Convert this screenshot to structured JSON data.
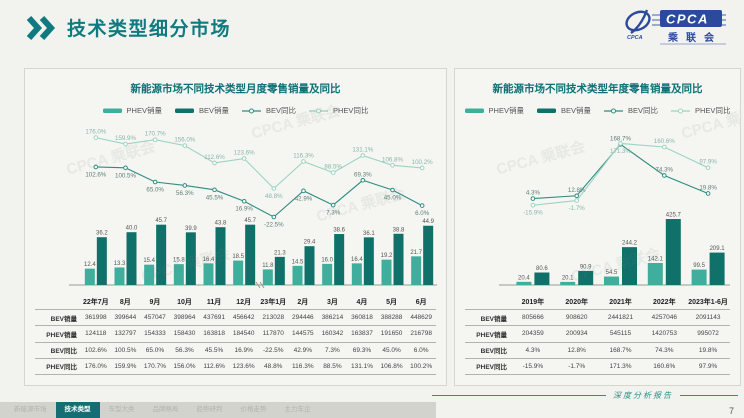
{
  "header": {
    "title": "技术类型细分市场",
    "logo": {
      "brand": "CPCA",
      "brand_cn": "乘联会"
    }
  },
  "watermark": "CPCA 乘联会",
  "colors": {
    "accent": "#0f7a80",
    "phev_bar": "#3fae9c",
    "bev_bar": "#10716a",
    "bev_line": "#2f8c82",
    "phev_line": "#9ad4c3",
    "active_tab_bg": "#156e74",
    "logo_blue": "#2b4a9e"
  },
  "chart_data": [
    {
      "type": "bar+line",
      "title": "新能源市场不同技术类型月度零售销量及同比",
      "bar_unit": "万",
      "categories": [
        "22年7月",
        "8月",
        "9月",
        "10月",
        "11月",
        "12月",
        "23年1月",
        "2月",
        "3月",
        "4月",
        "5月",
        "6月"
      ],
      "bar_series": [
        {
          "name": "PHEV销量",
          "color": "#3fae9c",
          "values": [
            12.4,
            13.3,
            15.4,
            15.8,
            16.4,
            18.5,
            11.8,
            14.5,
            16.0,
            16.4,
            19.2,
            21.7
          ]
        },
        {
          "name": "BEV销量",
          "color": "#10716a",
          "values": [
            36.2,
            40.0,
            45.7,
            39.9,
            43.8,
            45.7,
            21.3,
            29.4,
            38.6,
            36.1,
            38.8,
            44.9
          ]
        }
      ],
      "line_series": [
        {
          "name": "BEV同比",
          "color": "#2f8c82",
          "label_color": "#5d7f79",
          "values": [
            102.6,
            100.5,
            65.0,
            56.3,
            45.5,
            16.9,
            -22.5,
            42.9,
            7.3,
            69.3,
            45.0,
            6.0
          ]
        },
        {
          "name": "PHEV同比",
          "color": "#9ad4c3",
          "label_color": "#87b7a9",
          "values": [
            176.0,
            159.9,
            170.7,
            156.0,
            112.6,
            123.6,
            48.8,
            116.3,
            88.5,
            131.1,
            106.8,
            100.2
          ]
        }
      ],
      "table": {
        "row_headers": [
          "BEV销量",
          "PHEV销量",
          "BEV同比",
          "PHEV同比"
        ],
        "rows": [
          [
            "361998",
            "399644",
            "457047",
            "398964",
            "437691",
            "456642",
            "213028",
            "294446",
            "386214",
            "360818",
            "388288",
            "448629"
          ],
          [
            "124118",
            "132797",
            "154333",
            "158430",
            "163818",
            "184540",
            "117870",
            "144575",
            "160342",
            "163837",
            "191650",
            "216798"
          ],
          [
            "102.6%",
            "100.5%",
            "65.0%",
            "56.3%",
            "45.5%",
            "16.9%",
            "-22.5%",
            "42.9%",
            "7.3%",
            "69.3%",
            "45.0%",
            "6.0%"
          ],
          [
            "176.0%",
            "159.9%",
            "170.7%",
            "156.0%",
            "112.6%",
            "123.6%",
            "48.8%",
            "116.3%",
            "88.5%",
            "131.1%",
            "106.8%",
            "100.2%"
          ]
        ]
      }
    },
    {
      "type": "bar+line",
      "title": "新能源市场不同技术类型年度零售销量及同比",
      "bar_unit": "万",
      "categories": [
        "2019年",
        "2020年",
        "2021年",
        "2022年",
        "2023年1-6月"
      ],
      "bar_series": [
        {
          "name": "PHEV销量",
          "color": "#3fae9c",
          "values": [
            20.4,
            20.1,
            54.5,
            142.1,
            99.5
          ]
        },
        {
          "name": "BEV销量",
          "color": "#10716a",
          "values": [
            80.6,
            90.9,
            244.2,
            425.7,
            209.1
          ]
        }
      ],
      "line_series": [
        {
          "name": "BEV同比",
          "color": "#2f8c82",
          "label_color": "#5d7f79",
          "values": [
            4.3,
            12.8,
            168.7,
            74.3,
            19.8
          ]
        },
        {
          "name": "PHEV同比",
          "color": "#9ad4c3",
          "label_color": "#87b7a9",
          "values": [
            -15.9,
            -1.7,
            171.3,
            160.6,
            97.9
          ]
        }
      ],
      "table": {
        "row_headers": [
          "BEV销量",
          "PHEV销量",
          "BEV同比",
          "PHEV同比"
        ],
        "rows": [
          [
            "805666",
            "908620",
            "2441821",
            "4257046",
            "2091143"
          ],
          [
            "204359",
            "200934",
            "545115",
            "1420753",
            "995072"
          ],
          [
            "4.3%",
            "12.8%",
            "168.7%",
            "74.3%",
            "19.8%"
          ],
          [
            "-15.9%",
            "-1.7%",
            "171.3%",
            "160.6%",
            "97.9%"
          ]
        ]
      }
    }
  ],
  "nav": {
    "tabs": [
      {
        "label": "新能源市场",
        "active": false
      },
      {
        "label": "技术类型",
        "active": true
      },
      {
        "label": "车型大类",
        "active": false
      },
      {
        "label": "品牌格局",
        "active": false
      },
      {
        "label": "趋势研判",
        "active": false
      },
      {
        "label": "价格走势",
        "active": false
      },
      {
        "label": "主力车企",
        "active": false
      }
    ]
  },
  "footer": {
    "report_label": "深度分析报告",
    "page": "7"
  }
}
